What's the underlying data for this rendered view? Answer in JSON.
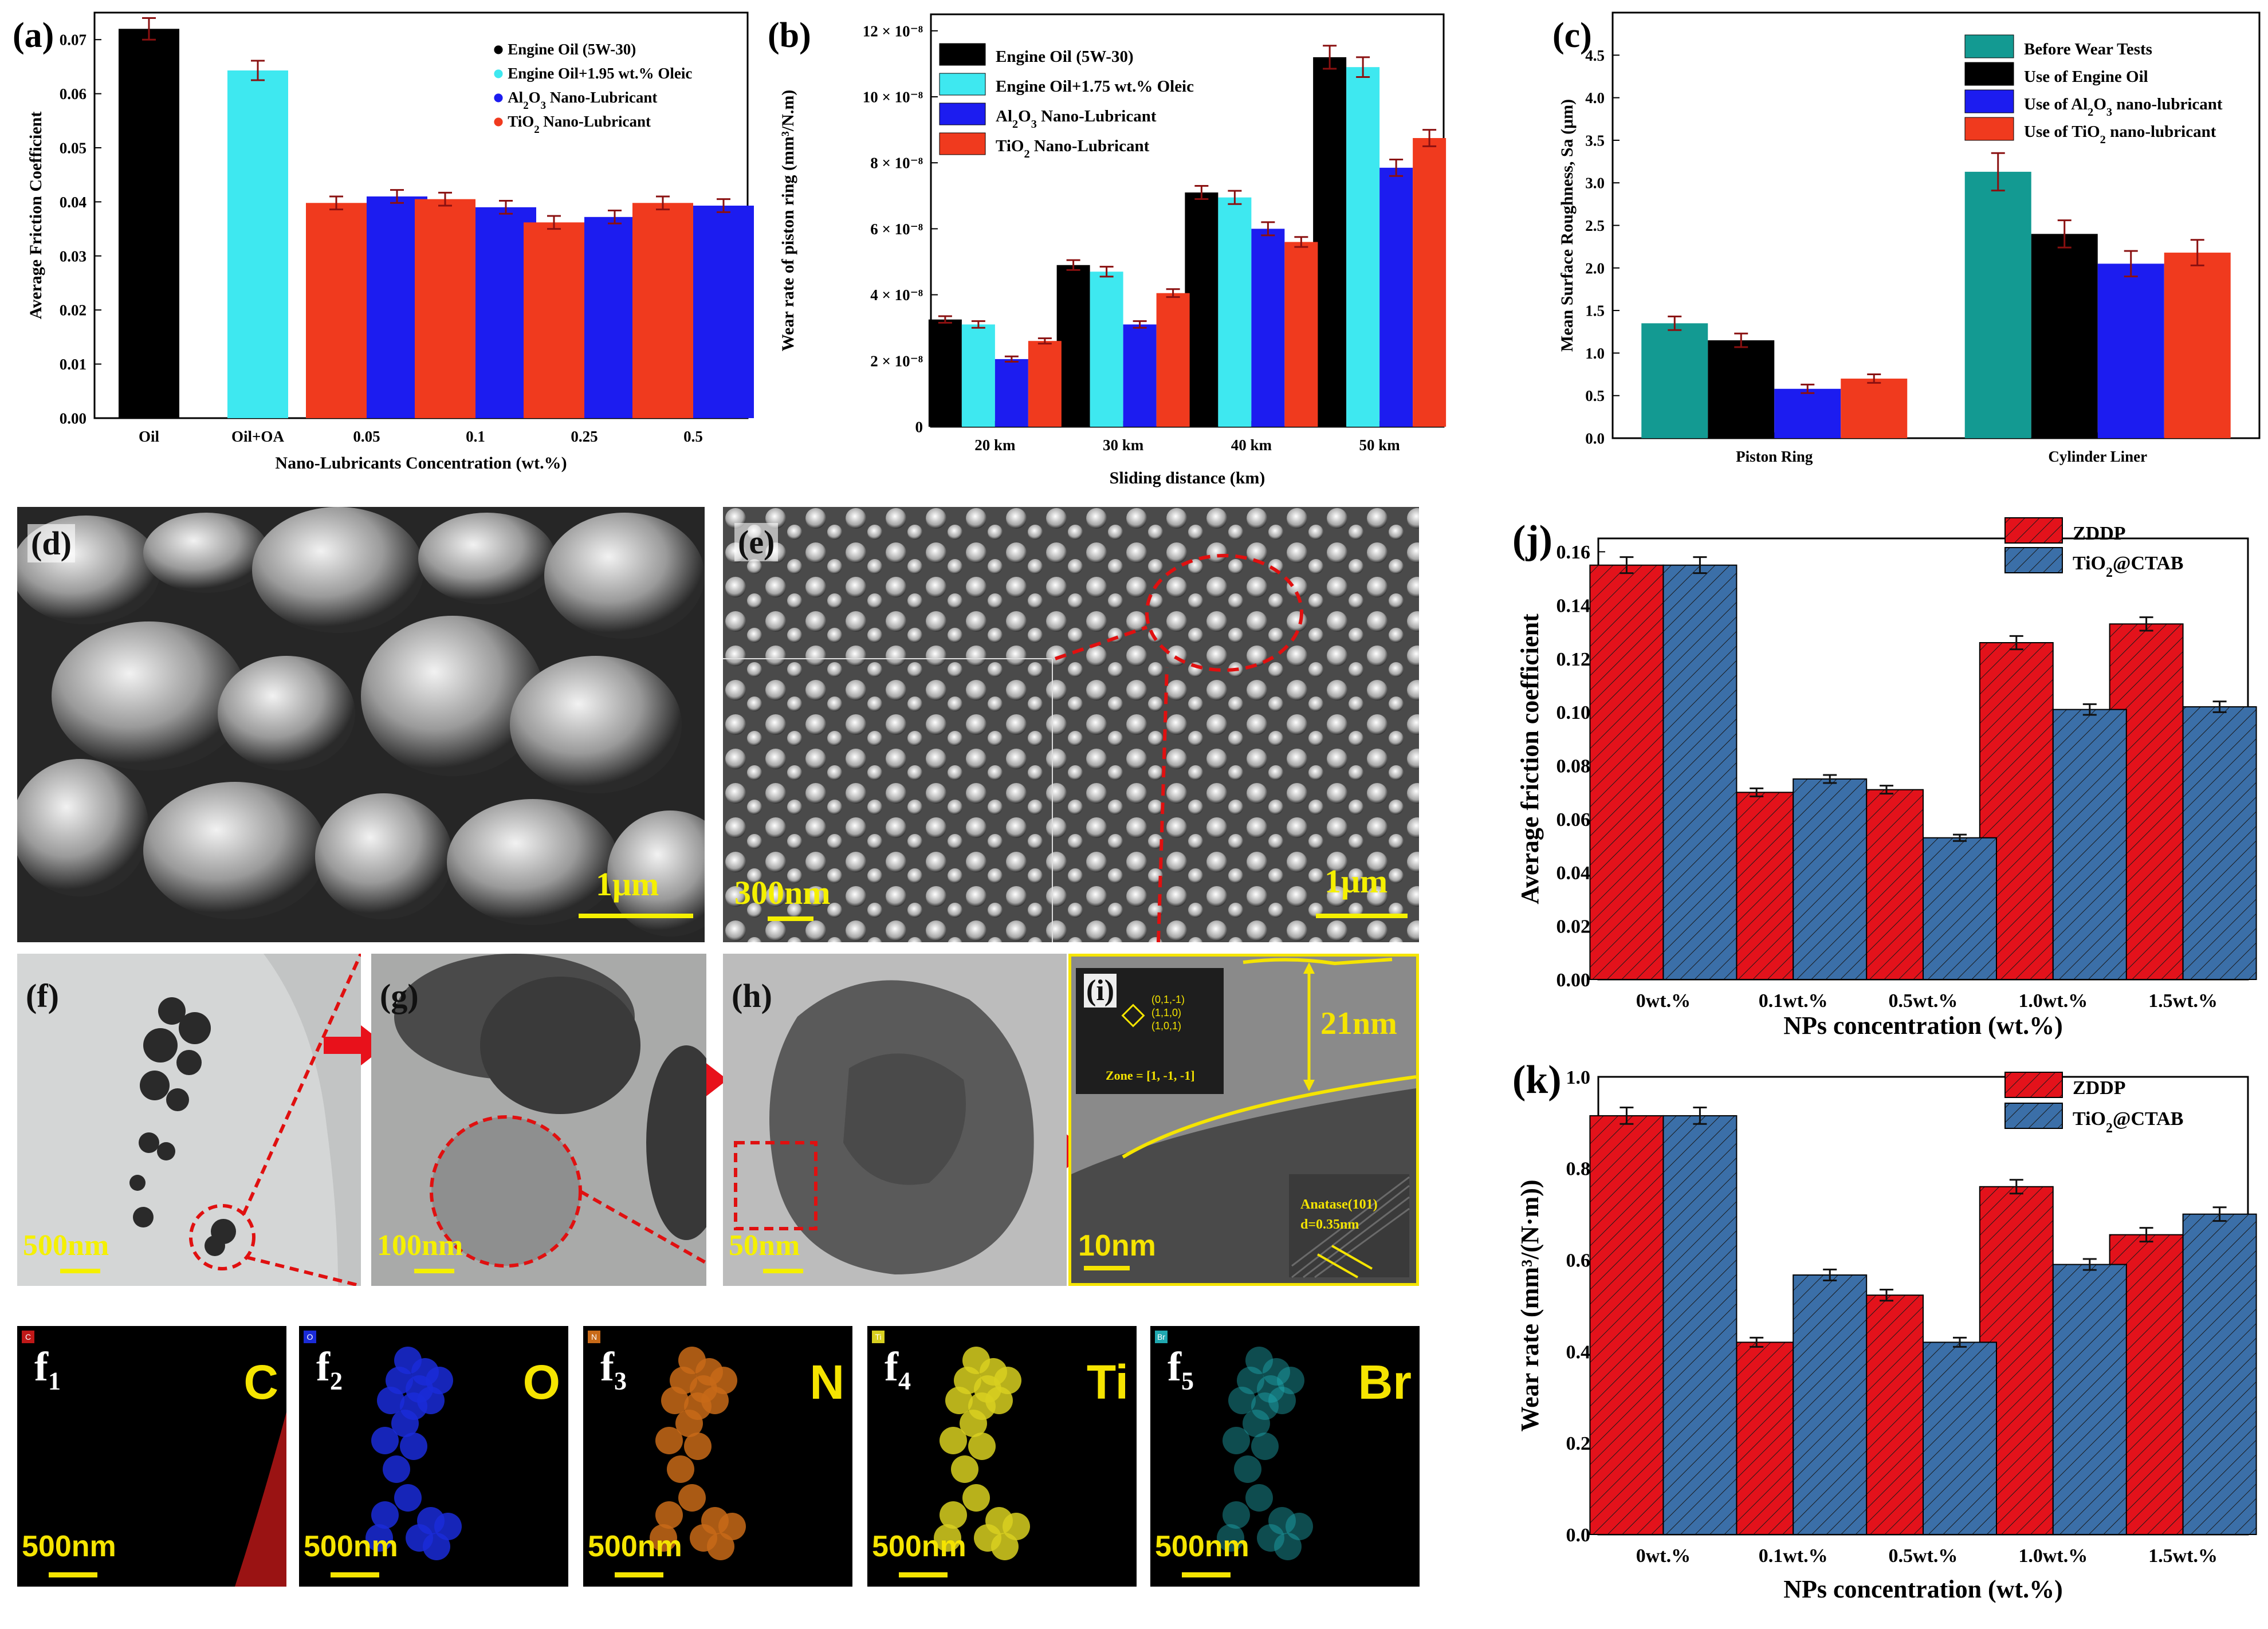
{
  "panels": {
    "d": {
      "letter": "(d)",
      "scale": "1μm"
    },
    "e": {
      "letter": "(e)",
      "scale1": "300nm",
      "scale2": "1μm"
    },
    "f": {
      "letter": "(f)",
      "scale": "500nm"
    },
    "g": {
      "letter": "(g)",
      "scale": "100nm"
    },
    "h": {
      "letter": "(h)",
      "scale": "50nm"
    },
    "i": {
      "letter": "(i)",
      "scale": "10nm",
      "thickness": "21nm",
      "zone": "Zone = [1, -1, -1]",
      "planes": [
        "(0,1,-1)",
        "(1,1,0)",
        "(1,0,1)"
      ],
      "anatase": "Anatase(101)",
      "dspacing": "d=0.35nm"
    },
    "maps": [
      {
        "letter": "f",
        "sub": "1",
        "element": "C",
        "scale": "500nm",
        "tag": "C",
        "color": "#c01818"
      },
      {
        "letter": "f",
        "sub": "2",
        "element": "O",
        "scale": "500nm",
        "tag": "O",
        "color": "#1a2bd8"
      },
      {
        "letter": "f",
        "sub": "3",
        "element": "N",
        "scale": "500nm",
        "tag": "N",
        "color": "#c86a18"
      },
      {
        "letter": "f",
        "sub": "4",
        "element": "Ti",
        "scale": "500nm",
        "tag": "Ti",
        "color": "#d8d020"
      },
      {
        "letter": "f",
        "sub": "5",
        "element": "Br",
        "scale": "500nm",
        "tag": "Br",
        "color": "#20a8b0"
      }
    ]
  },
  "chart_data": [
    {
      "id": "a",
      "letter": "(a)",
      "type": "bar",
      "ylabel": "Average Friction Coefficient",
      "xlabel": "Nano-Lubricants Concentration (wt.%)",
      "ylim": [
        0,
        0.075
      ],
      "yticks": [
        "0.00",
        "0.01",
        "0.02",
        "0.03",
        "0.04",
        "0.05",
        "0.06",
        "0.07"
      ],
      "categories": [
        "Oil",
        "Oil+OA",
        "0.05",
        "0.1",
        "0.25",
        "0.5"
      ],
      "legend": [
        "Engine Oil (5W-30)",
        "Engine Oil+1.95 wt.% Oleic",
        "Al2O3 Nano-Lubricant",
        "TiO2 Nano-Lubricant"
      ],
      "colors": [
        "#000000",
        "#3ee8f0",
        "#1c1cf0",
        "#f03a1e"
      ],
      "values": [
        {
          "cat": 0,
          "series": 0,
          "value": 0.072,
          "err": 0.002
        },
        {
          "cat": 1,
          "series": 1,
          "value": 0.0643,
          "err": 0.0018
        },
        {
          "cat": 2,
          "series": 3,
          "value": 0.0398,
          "err": 0.0012
        },
        {
          "cat": 2,
          "series": 2,
          "value": 0.041,
          "err": 0.0012
        },
        {
          "cat": 3,
          "series": 3,
          "value": 0.0405,
          "err": 0.0012
        },
        {
          "cat": 3,
          "series": 2,
          "value": 0.039,
          "err": 0.0012
        },
        {
          "cat": 4,
          "series": 3,
          "value": 0.0362,
          "err": 0.0012
        },
        {
          "cat": 4,
          "series": 2,
          "value": 0.0372,
          "err": 0.0012
        },
        {
          "cat": 5,
          "series": 3,
          "value": 0.0398,
          "err": 0.0012
        },
        {
          "cat": 5,
          "series": 2,
          "value": 0.0393,
          "err": 0.0012
        }
      ]
    },
    {
      "id": "b",
      "letter": "(b)",
      "type": "bar",
      "ylabel": "Wear rate of piston ring (mm³/N.m)",
      "xlabel": "Sliding distance (km)",
      "ylim": [
        0,
        1.25e-07
      ],
      "yticks": [
        "0",
        "2 × 10⁻⁸",
        "4 × 10⁻⁸",
        "6 × 10⁻⁸",
        "8 × 10⁻⁸",
        "10 × 10⁻⁸",
        "12 × 10⁻⁸"
      ],
      "categories": [
        "20 km",
        "30 km",
        "40 km",
        "50 km"
      ],
      "legend": [
        "Engine Oil (5W-30)",
        "Engine Oil+1.75 wt.% Oleic",
        "Al2O3 Nano-Lubricant",
        "TiO2 Nano-Lubricant"
      ],
      "colors": [
        "#000000",
        "#3ee8f0",
        "#1c1cf0",
        "#f03a1e"
      ],
      "series": [
        {
          "name": "Engine Oil (5W-30)",
          "values": [
            3.25e-08,
            4.9e-08,
            7.1e-08,
            1.12e-07
          ],
          "err": [
            1e-09,
            1.5e-09,
            2e-09,
            3.5e-09
          ]
        },
        {
          "name": "Engine Oil+1.75 wt.% Oleic",
          "values": [
            3.1e-08,
            4.7e-08,
            6.95e-08,
            1.09e-07
          ],
          "err": [
            1e-09,
            1.5e-09,
            2e-09,
            3e-09
          ]
        },
        {
          "name": "Al2O3 Nano-Lubricant",
          "values": [
            2.05e-08,
            3.1e-08,
            6e-08,
            7.85e-08
          ],
          "err": [
            8e-10,
            1e-09,
            2e-09,
            2.5e-09
          ]
        },
        {
          "name": "TiO2 Nano-Lubricant",
          "values": [
            2.6e-08,
            4.05e-08,
            5.6e-08,
            8.75e-08
          ],
          "err": [
            8e-10,
            1.2e-09,
            1.5e-09,
            2.5e-09
          ]
        }
      ]
    },
    {
      "id": "c",
      "letter": "(c)",
      "type": "bar",
      "ylabel": "Mean Surface Roughness, Sa (μm)",
      "xlabel": "",
      "ylim": [
        0,
        5.0
      ],
      "yticks": [
        "0.0",
        "0.5",
        "1.0",
        "1.5",
        "2.0",
        "2.5",
        "3.0",
        "3.5",
        "4.0",
        "4.5"
      ],
      "categories": [
        "Piston Ring",
        "Cylinder Liner"
      ],
      "legend": [
        "Before Wear Tests",
        "Use of Engine Oil",
        "Use of Al2O3 nano-lubricant",
        "Use of TiO2 nano-lubricant"
      ],
      "colors": [
        "#139a92",
        "#000000",
        "#1c1cf0",
        "#f03a1e"
      ],
      "series": [
        {
          "name": "Before Wear Tests",
          "values": [
            1.35,
            3.13
          ],
          "err": [
            0.08,
            0.22
          ]
        },
        {
          "name": "Use of Engine Oil",
          "values": [
            1.15,
            2.4
          ],
          "err": [
            0.08,
            0.16
          ]
        },
        {
          "name": "Use of Al2O3 nano-lubricant",
          "values": [
            0.58,
            2.05
          ],
          "err": [
            0.05,
            0.15
          ]
        },
        {
          "name": "Use of TiO2 nano-lubricant",
          "values": [
            0.7,
            2.18
          ],
          "err": [
            0.05,
            0.15
          ]
        }
      ]
    },
    {
      "id": "j",
      "letter": "(j)",
      "type": "bar",
      "ylabel": "Average friction coefficient",
      "xlabel": "NPs concentration (wt.%)",
      "ylim": [
        0,
        0.165
      ],
      "yticks": [
        "0.00",
        "0.02",
        "0.04",
        "0.06",
        "0.08",
        "0.10",
        "0.12",
        "0.14",
        "0.16"
      ],
      "categories": [
        "0wt.%",
        "0.1wt.%",
        "0.5wt.%",
        "1.0wt.%",
        "1.5wt.%"
      ],
      "legend": [
        "ZDDP",
        "TiO2@CTAB"
      ],
      "colors": [
        "#e3121b",
        "#3b6fa8"
      ],
      "series": [
        {
          "name": "ZDDP",
          "values": [
            0.155,
            0.07,
            0.071,
            0.126,
            0.133
          ],
          "err": [
            0.003,
            0.0015,
            0.0015,
            0.0025,
            0.0025
          ]
        },
        {
          "name": "TiO2@CTAB",
          "values": [
            0.155,
            0.075,
            0.053,
            0.101,
            0.102
          ],
          "err": [
            0.003,
            0.0015,
            0.0012,
            0.002,
            0.002
          ]
        }
      ]
    },
    {
      "id": "k",
      "letter": "(k)",
      "type": "bar",
      "ylabel": "Wear rate (mm³/(N·m))",
      "xlabel": "NPs concentration (wt.%)",
      "ylim": [
        0,
        1.0
      ],
      "yticks": [
        "0.0",
        "0.2",
        "0.4",
        "0.6",
        "0.8",
        "1.0"
      ],
      "categories": [
        "0wt.%",
        "0.1wt.%",
        "0.5wt.%",
        "1.0wt.%",
        "1.5wt.%"
      ],
      "legend": [
        "ZDDP",
        "TiO2@CTAB"
      ],
      "colors": [
        "#e3121b",
        "#3b6fa8"
      ],
      "series": [
        {
          "name": "ZDDP",
          "values": [
            0.915,
            0.42,
            0.523,
            0.76,
            0.655
          ],
          "err": [
            0.018,
            0.01,
            0.012,
            0.015,
            0.015
          ]
        },
        {
          "name": "TiO2@CTAB",
          "values": [
            0.915,
            0.567,
            0.42,
            0.59,
            0.7
          ],
          "err": [
            0.018,
            0.012,
            0.01,
            0.012,
            0.015
          ]
        }
      ]
    }
  ]
}
